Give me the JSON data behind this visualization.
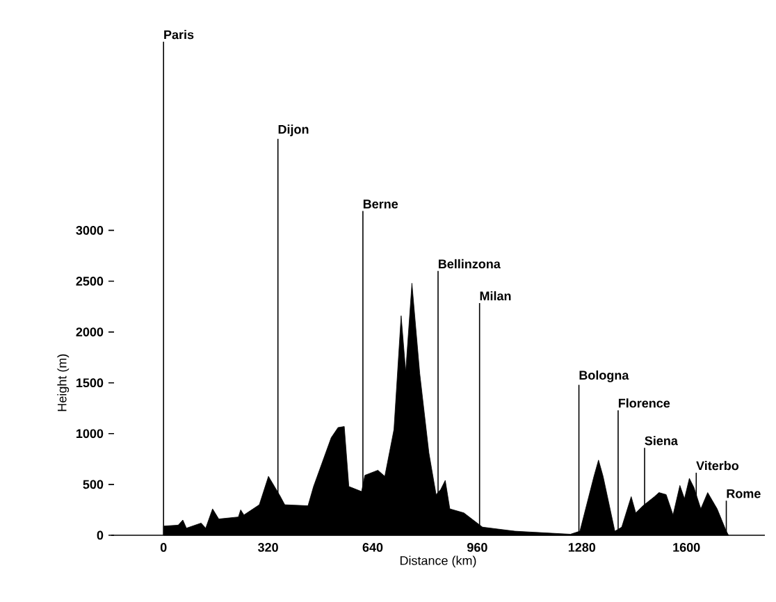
{
  "chart_data": {
    "type": "area",
    "xlabel": "Distance (km)",
    "ylabel": "Height (m)",
    "color": "#000000",
    "x": [
      0,
      0,
      45,
      59,
      70,
      115,
      129,
      150,
      169,
      229,
      236,
      246,
      293,
      321,
      356,
      371,
      442,
      459,
      513,
      534,
      553,
      567,
      606,
      616,
      656,
      677,
      705,
      727,
      741,
      760,
      784,
      812,
      834,
      848,
      862,
      876,
      919,
      976,
      1075,
      1245,
      1274,
      1317,
      1331,
      1345,
      1381,
      1402,
      1431,
      1445,
      1467,
      1502,
      1516,
      1538,
      1559,
      1580,
      1594,
      1609,
      1623,
      1644,
      1665,
      1694,
      1722,
      1729
    ],
    "values": [
      0,
      90,
      100,
      150,
      70,
      120,
      70,
      260,
      160,
      180,
      250,
      200,
      300,
      580,
      390,
      300,
      290,
      480,
      960,
      1060,
      1070,
      480,
      430,
      590,
      640,
      580,
      1040,
      2160,
      1610,
      2480,
      1590,
      810,
      400,
      450,
      540,
      260,
      220,
      80,
      40,
      10,
      40,
      580,
      740,
      580,
      40,
      80,
      380,
      220,
      290,
      380,
      420,
      400,
      200,
      490,
      360,
      560,
      470,
      260,
      420,
      260,
      40,
      0
    ],
    "xlim": [
      -160,
      1840
    ],
    "ylim": [
      0,
      3000
    ],
    "xticks": [
      0,
      320,
      640,
      960,
      1280,
      1600
    ],
    "yticks": [
      0,
      500,
      1000,
      1500,
      2000,
      2500,
      3000
    ],
    "ref_lines": [
      {
        "axis": "x",
        "value": 0,
        "label": "Paris"
      },
      {
        "axis": "x",
        "value": 350,
        "label": "Dijon"
      },
      {
        "axis": "x",
        "value": 610,
        "label": "Berne"
      },
      {
        "axis": "x",
        "value": 840,
        "label": "Bellinzona"
      },
      {
        "axis": "x",
        "value": 967,
        "label": "Milan"
      },
      {
        "axis": "x",
        "value": 1271,
        "label": "Bologna"
      },
      {
        "axis": "x",
        "value": 1391,
        "label": "Florence"
      },
      {
        "axis": "x",
        "value": 1472,
        "label": "Siena"
      },
      {
        "axis": "x",
        "value": 1630,
        "label": "Viterbo"
      },
      {
        "axis": "x",
        "value": 1722,
        "label": "Rome"
      }
    ]
  }
}
